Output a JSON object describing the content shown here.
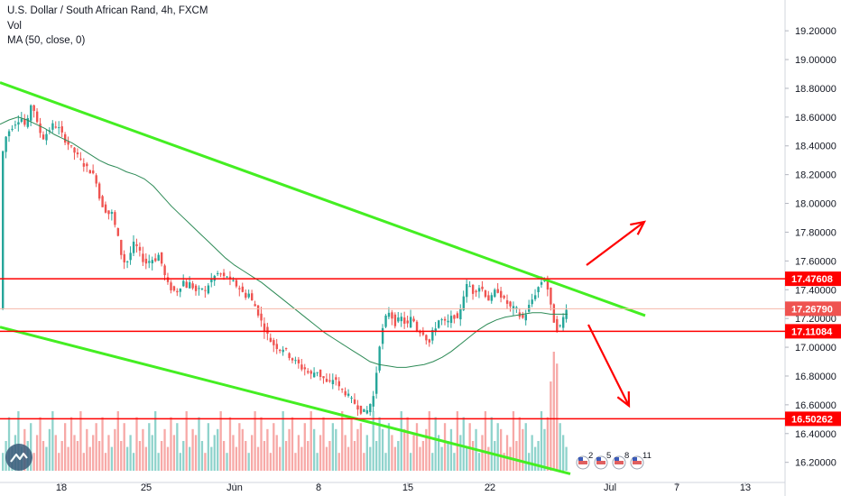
{
  "header": {
    "title": "U.S. Dollar / South African Rand, 4h, FXCM",
    "vol": "Vol",
    "ma": "MA (50, close, 0)"
  },
  "colors": {
    "up": "#26a69a",
    "down": "#ef5350",
    "vol_up": "#8fd3cc",
    "vol_down": "#f7a9a7",
    "ma": "#2e8b57",
    "trendline": "#44ee22",
    "level": "#ff0000",
    "current": "#f5b7a8"
  },
  "chart_data": {
    "type": "candlestick",
    "title": "U.S. Dollar / South African Rand, 4h, FXCM",
    "ylim": [
      16.06,
      19.32
    ],
    "y_ticks": [
      "19.20000",
      "19.00000",
      "18.80000",
      "18.60000",
      "18.40000",
      "18.20000",
      "18.00000",
      "17.80000",
      "17.60000",
      "17.40000",
      "17.20000",
      "17.00000",
      "16.80000",
      "16.60000",
      "16.40000",
      "16.20000"
    ],
    "x_ticks": [
      "18",
      "25",
      "Jun",
      "8",
      "15",
      "22",
      "Jul",
      "7",
      "13"
    ],
    "close_path": [
      [
        0,
        18.3
      ],
      [
        6,
        18.48
      ],
      [
        14,
        18.55
      ],
      [
        22,
        18.6
      ],
      [
        28,
        18.52
      ],
      [
        34,
        18.72
      ],
      [
        40,
        18.55
      ],
      [
        46,
        18.45
      ],
      [
        52,
        18.5
      ],
      [
        58,
        18.55
      ],
      [
        64,
        18.52
      ],
      [
        70,
        18.45
      ],
      [
        76,
        18.4
      ],
      [
        82,
        18.35
      ],
      [
        88,
        18.3
      ],
      [
        94,
        18.25
      ],
      [
        100,
        18.22
      ],
      [
        106,
        18.15
      ],
      [
        110,
        18.0
      ],
      [
        114,
        17.98
      ],
      [
        118,
        17.92
      ],
      [
        122,
        17.95
      ],
      [
        126,
        17.85
      ],
      [
        130,
        17.75
      ],
      [
        134,
        17.62
      ],
      [
        138,
        17.58
      ],
      [
        142,
        17.62
      ],
      [
        146,
        17.72
      ],
      [
        150,
        17.7
      ],
      [
        154,
        17.65
      ],
      [
        158,
        17.6
      ],
      [
        162,
        17.58
      ],
      [
        166,
        17.62
      ],
      [
        170,
        17.6
      ],
      [
        174,
        17.65
      ],
      [
        178,
        17.58
      ],
      [
        182,
        17.48
      ],
      [
        186,
        17.42
      ],
      [
        190,
        17.4
      ],
      [
        194,
        17.38
      ],
      [
        198,
        17.42
      ],
      [
        202,
        17.46
      ],
      [
        206,
        17.42
      ],
      [
        210,
        17.45
      ],
      [
        214,
        17.4
      ],
      [
        218,
        17.38
      ],
      [
        222,
        17.42
      ],
      [
        226,
        17.38
      ],
      [
        230,
        17.44
      ],
      [
        234,
        17.48
      ],
      [
        238,
        17.5
      ],
      [
        242,
        17.52
      ],
      [
        246,
        17.48
      ],
      [
        250,
        17.5
      ],
      [
        254,
        17.46
      ],
      [
        258,
        17.45
      ],
      [
        262,
        17.42
      ],
      [
        266,
        17.4
      ],
      [
        270,
        17.35
      ],
      [
        274,
        17.38
      ],
      [
        278,
        17.32
      ],
      [
        282,
        17.28
      ],
      [
        286,
        17.22
      ],
      [
        290,
        17.15
      ],
      [
        294,
        17.1
      ],
      [
        298,
        17.05
      ],
      [
        302,
        17.02
      ],
      [
        306,
        17.0
      ],
      [
        310,
        16.98
      ],
      [
        314,
        17.0
      ],
      [
        318,
        16.95
      ],
      [
        322,
        16.92
      ],
      [
        326,
        16.9
      ],
      [
        330,
        16.88
      ],
      [
        334,
        16.85
      ],
      [
        338,
        16.85
      ],
      [
        342,
        16.8
      ],
      [
        346,
        16.82
      ],
      [
        350,
        16.84
      ],
      [
        354,
        16.8
      ],
      [
        358,
        16.78
      ],
      [
        362,
        16.74
      ],
      [
        366,
        16.76
      ],
      [
        370,
        16.8
      ],
      [
        374,
        16.72
      ],
      [
        378,
        16.7
      ],
      [
        382,
        16.68
      ],
      [
        386,
        16.65
      ],
      [
        390,
        16.62
      ],
      [
        394,
        16.6
      ],
      [
        398,
        16.56
      ],
      [
        402,
        16.55
      ],
      [
        406,
        16.56
      ],
      [
        410,
        16.62
      ],
      [
        414,
        16.68
      ],
      [
        418,
        16.98
      ],
      [
        422,
        17.1
      ],
      [
        426,
        17.2
      ],
      [
        430,
        17.25
      ],
      [
        434,
        17.2
      ],
      [
        438,
        17.15
      ],
      [
        442,
        17.22
      ],
      [
        446,
        17.18
      ],
      [
        450,
        17.15
      ],
      [
        454,
        17.2
      ],
      [
        458,
        17.18
      ],
      [
        462,
        17.1
      ],
      [
        466,
        17.12
      ],
      [
        470,
        17.08
      ],
      [
        474,
        17.02
      ],
      [
        478,
        17.1
      ],
      [
        482,
        17.15
      ],
      [
        486,
        17.2
      ],
      [
        490,
        17.18
      ],
      [
        494,
        17.16
      ],
      [
        498,
        17.2
      ],
      [
        502,
        17.22
      ],
      [
        506,
        17.18
      ],
      [
        510,
        17.3
      ],
      [
        514,
        17.4
      ],
      [
        518,
        17.45
      ],
      [
        522,
        17.38
      ],
      [
        526,
        17.4
      ],
      [
        530,
        17.42
      ],
      [
        534,
        17.4
      ],
      [
        538,
        17.35
      ],
      [
        542,
        17.32
      ],
      [
        546,
        17.38
      ],
      [
        550,
        17.4
      ],
      [
        554,
        17.36
      ],
      [
        558,
        17.32
      ],
      [
        562,
        17.3
      ],
      [
        566,
        17.26
      ],
      [
        570,
        17.28
      ],
      [
        574,
        17.22
      ],
      [
        578,
        17.2
      ],
      [
        582,
        17.24
      ],
      [
        586,
        17.3
      ],
      [
        590,
        17.35
      ],
      [
        594,
        17.4
      ],
      [
        598,
        17.45
      ],
      [
        602,
        17.48
      ],
      [
        606,
        17.4
      ],
      [
        610,
        17.25
      ],
      [
        614,
        17.15
      ],
      [
        618,
        17.12
      ],
      [
        622,
        17.18
      ],
      [
        626,
        17.28
      ],
      [
        629,
        17.27
      ]
    ],
    "ma_path": [
      [
        0,
        18.55
      ],
      [
        10,
        18.58
      ],
      [
        20,
        18.6
      ],
      [
        30,
        18.58
      ],
      [
        40,
        18.55
      ],
      [
        50,
        18.52
      ],
      [
        60,
        18.48
      ],
      [
        70,
        18.45
      ],
      [
        80,
        18.42
      ],
      [
        90,
        18.38
      ],
      [
        100,
        18.34
      ],
      [
        110,
        18.3
      ],
      [
        120,
        18.27
      ],
      [
        130,
        18.25
      ],
      [
        140,
        18.22
      ],
      [
        150,
        18.2
      ],
      [
        160,
        18.17
      ],
      [
        170,
        18.12
      ],
      [
        180,
        18.05
      ],
      [
        190,
        17.98
      ],
      [
        200,
        17.92
      ],
      [
        210,
        17.86
      ],
      [
        220,
        17.8
      ],
      [
        230,
        17.74
      ],
      [
        240,
        17.68
      ],
      [
        250,
        17.62
      ],
      [
        260,
        17.57
      ],
      [
        270,
        17.53
      ],
      [
        280,
        17.49
      ],
      [
        290,
        17.45
      ],
      [
        300,
        17.4
      ],
      [
        310,
        17.35
      ],
      [
        320,
        17.3
      ],
      [
        330,
        17.25
      ],
      [
        340,
        17.2
      ],
      [
        350,
        17.15
      ],
      [
        360,
        17.1
      ],
      [
        370,
        17.06
      ],
      [
        380,
        17.02
      ],
      [
        390,
        16.98
      ],
      [
        400,
        16.94
      ],
      [
        410,
        16.9
      ],
      [
        420,
        16.88
      ],
      [
        430,
        16.87
      ],
      [
        440,
        16.86
      ],
      [
        450,
        16.86
      ],
      [
        460,
        16.87
      ],
      [
        470,
        16.88
      ],
      [
        480,
        16.9
      ],
      [
        490,
        16.93
      ],
      [
        500,
        16.97
      ],
      [
        510,
        17.02
      ],
      [
        520,
        17.07
      ],
      [
        530,
        17.12
      ],
      [
        540,
        17.16
      ],
      [
        550,
        17.19
      ],
      [
        560,
        17.21
      ],
      [
        570,
        17.22
      ],
      [
        580,
        17.23
      ],
      [
        590,
        17.24
      ],
      [
        600,
        17.24
      ],
      [
        610,
        17.23
      ],
      [
        620,
        17.23
      ],
      [
        629,
        17.23
      ]
    ],
    "volume_levels": [
      3,
      5,
      9,
      4,
      6,
      10,
      4,
      7,
      5,
      8,
      3,
      6,
      9,
      5,
      4,
      7,
      10,
      6,
      3,
      5,
      8,
      4,
      9,
      6,
      5,
      10,
      3,
      7,
      4,
      6,
      8,
      5,
      9,
      3,
      6,
      4,
      7,
      10,
      5,
      8,
      4,
      6,
      3,
      9,
      5,
      7,
      4,
      8,
      6,
      10,
      3,
      5,
      7,
      4,
      9,
      6,
      8,
      3,
      5,
      10,
      4,
      7,
      6,
      9,
      5,
      3,
      8,
      4,
      6,
      7,
      10,
      5,
      3,
      9,
      6,
      4,
      8,
      7,
      5,
      3,
      6,
      10,
      4,
      9,
      5,
      7,
      3,
      8,
      6,
      4,
      10,
      5,
      7,
      9,
      3,
      6,
      4,
      8,
      5,
      10,
      7,
      3,
      6,
      9,
      4,
      5,
      8,
      7,
      3,
      10,
      6,
      4,
      9,
      5,
      7,
      8,
      3,
      6,
      4,
      10,
      5,
      9,
      7,
      3,
      8,
      6,
      4,
      5,
      10,
      7,
      9,
      3,
      6,
      8,
      4,
      5,
      7,
      10,
      3,
      9,
      6,
      4,
      8,
      5,
      7,
      3,
      10,
      6,
      9,
      4,
      8,
      5,
      7,
      3,
      6,
      10,
      4,
      9,
      5,
      8,
      7,
      3,
      6,
      4,
      10,
      5,
      9,
      7,
      8,
      3,
      6,
      4,
      5,
      10,
      7,
      9,
      15,
      20,
      18,
      8,
      6,
      4
    ],
    "levels": [
      {
        "name": "resistance",
        "value": 17.47608,
        "label": "17.47608"
      },
      {
        "name": "current",
        "value": 17.2679,
        "label": "17.26790"
      },
      {
        "name": "support",
        "value": 17.11084,
        "label": "17.11084"
      },
      {
        "name": "lower",
        "value": 16.50262,
        "label": "16.50262"
      }
    ],
    "trendlines": [
      {
        "name": "upper-trendline",
        "from": [
          0,
          18.84
        ],
        "to": [
          715,
          17.22
        ]
      },
      {
        "name": "lower-trendline",
        "from": [
          0,
          17.14
        ],
        "to": [
          632,
          16.12
        ]
      }
    ],
    "events": [
      "2",
      "5",
      "8",
      "11"
    ]
  }
}
